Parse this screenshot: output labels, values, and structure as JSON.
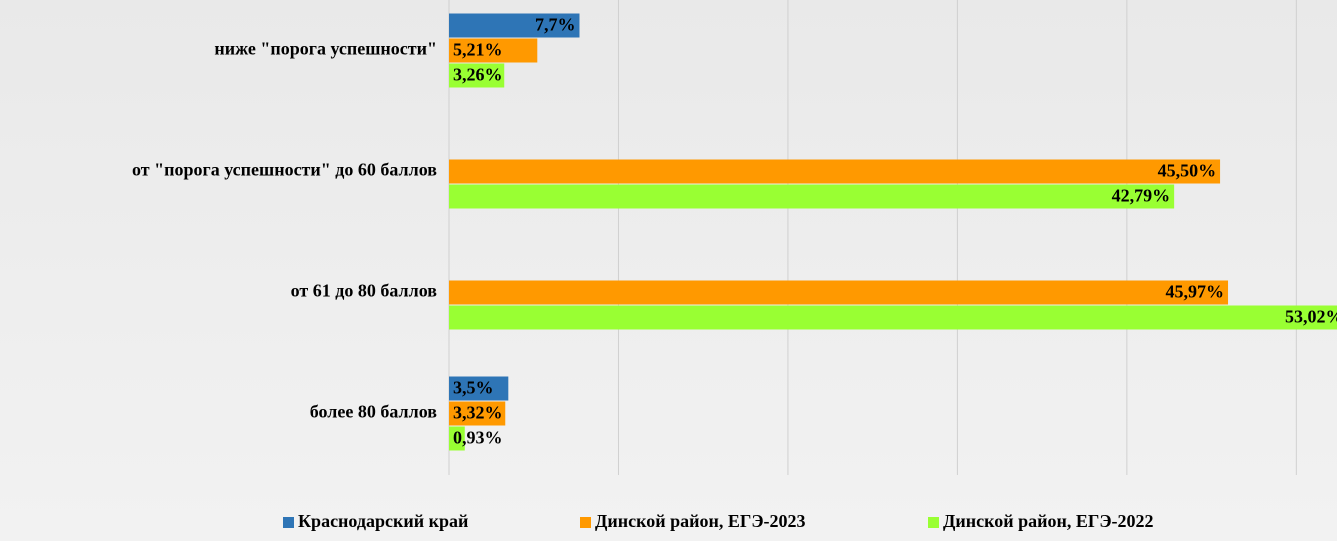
{
  "chart_data": {
    "type": "barh",
    "categories": [
      "ниже \"порога успешности\"",
      "от \"порога успешности\" до 60 баллов",
      "от 61 до 80 баллов",
      "более 80 баллов"
    ],
    "series": [
      {
        "name": "Краснодарский край",
        "color": "#2e75b6",
        "values": [
          7.7,
          null,
          null,
          3.5
        ],
        "value_labels": [
          "7,7%",
          null,
          null,
          "3,5%"
        ]
      },
      {
        "name": "Динской район, ЕГЭ-2023",
        "color": "#ff9900",
        "values": [
          5.21,
          45.5,
          45.97,
          3.32
        ],
        "value_labels": [
          "5,21%",
          "45,50%",
          "45,97%",
          "3,32%"
        ]
      },
      {
        "name": "Динской район, ЕГЭ-2022",
        "color": "#99ff33",
        "values": [
          3.26,
          42.79,
          53.02,
          0.93
        ],
        "value_labels": [
          "3,26%",
          "42,79%",
          "53,02%",
          "0,93%"
        ]
      }
    ],
    "xlim": [
      0,
      52.4
    ],
    "xticks": [
      0,
      10,
      20,
      30,
      40,
      50
    ],
    "grid": true,
    "legend": "bottom"
  }
}
